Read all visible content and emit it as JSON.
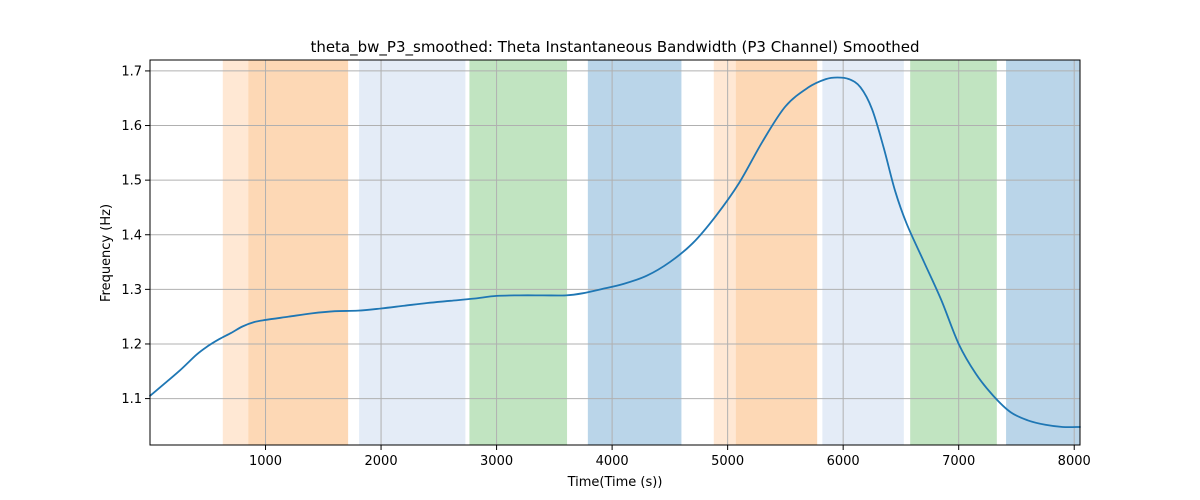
{
  "chart_data": {
    "type": "line",
    "title": "theta_bw_P3_smoothed: Theta Instantaneous Bandwidth (P3 Channel) Smoothed",
    "xlabel": "Time(Time (s))",
    "ylabel": "Frequency (Hz)",
    "xlim": [
      0,
      8050
    ],
    "ylim": [
      1.015,
      1.72
    ],
    "xticks": [
      1000,
      2000,
      3000,
      4000,
      5000,
      6000,
      7000,
      8000
    ],
    "yticks": [
      1.1,
      1.2,
      1.3,
      1.4,
      1.5,
      1.6,
      1.7
    ],
    "grid": true,
    "bands": [
      {
        "x0": 630,
        "x1": 850,
        "color": "#ffe8d4"
      },
      {
        "x0": 850,
        "x1": 1715,
        "color": "#fdd8b5"
      },
      {
        "x0": 1810,
        "x1": 2730,
        "color": "#e4ecf7"
      },
      {
        "x0": 2765,
        "x1": 3610,
        "color": "#c1e4c1"
      },
      {
        "x0": 3790,
        "x1": 4600,
        "color": "#bad5e9"
      },
      {
        "x0": 4880,
        "x1": 5070,
        "color": "#ffe8d4"
      },
      {
        "x0": 5070,
        "x1": 5775,
        "color": "#fdd8b5"
      },
      {
        "x0": 5820,
        "x1": 6525,
        "color": "#e4ecf7"
      },
      {
        "x0": 6580,
        "x1": 7330,
        "color": "#c1e4c1"
      },
      {
        "x0": 7410,
        "x1": 8050,
        "color": "#bad5e9"
      }
    ],
    "series": [
      {
        "color": "#1f77b4",
        "x": [
          0,
          250,
          400,
          500,
          600,
          700,
          800,
          900,
          1000,
          1200,
          1400,
          1600,
          1800,
          2000,
          2200,
          2400,
          2600,
          2800,
          3000,
          3200,
          3400,
          3600,
          3750,
          3900,
          4100,
          4300,
          4500,
          4700,
          4900,
          5100,
          5300,
          5500,
          5700,
          5850,
          5950,
          6050,
          6150,
          6250,
          6350,
          6450,
          6550,
          6700,
          6850,
          7000,
          7150,
          7300,
          7450,
          7600,
          7750,
          7900,
          8050
        ],
        "y": [
          1.105,
          1.15,
          1.18,
          1.196,
          1.209,
          1.22,
          1.232,
          1.24,
          1.244,
          1.25,
          1.256,
          1.26,
          1.261,
          1.265,
          1.27,
          1.275,
          1.279,
          1.283,
          1.288,
          1.289,
          1.289,
          1.289,
          1.293,
          1.3,
          1.31,
          1.325,
          1.35,
          1.385,
          1.435,
          1.495,
          1.57,
          1.635,
          1.67,
          1.685,
          1.688,
          1.685,
          1.67,
          1.63,
          1.56,
          1.48,
          1.42,
          1.35,
          1.28,
          1.2,
          1.145,
          1.105,
          1.075,
          1.06,
          1.052,
          1.048,
          1.048
        ]
      }
    ]
  }
}
